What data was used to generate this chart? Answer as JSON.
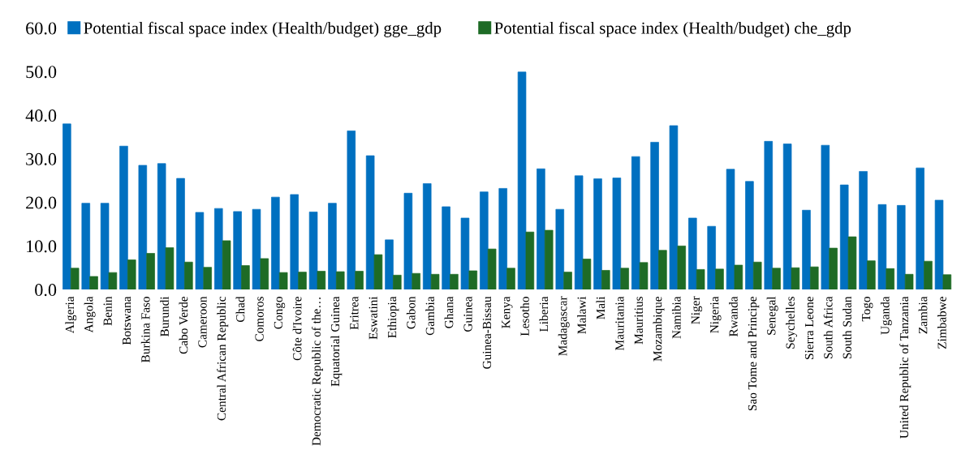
{
  "chart_data": {
    "type": "bar",
    "categories": [
      "Algeria",
      "Angola",
      "Benin",
      "Botswana",
      "Burkina Faso",
      "Burundi",
      "Cabo Verde",
      "Cameroon",
      "Central African Republic",
      "Chad",
      "Comoros",
      "Congo",
      "Côte d'Ivoire",
      "Democratic Republic of the…",
      "Equatorial Guinea",
      "Eritrea",
      "Eswatini",
      "Ethiopia",
      "Gabon",
      "Gambia",
      "Ghana",
      "Guinea",
      "Guinea-Bissau",
      "Kenya",
      "Lesotho",
      "Liberia",
      "Madagascar",
      "Malawi",
      "Mali",
      "Mauritania",
      "Mauritius",
      "Mozambique",
      "Namibia",
      "Niger",
      "Nigeria",
      "Rwanda",
      "Sao Tome and Principe",
      "Senegal",
      "Seychelles",
      "Sierra Leone",
      "South Africa",
      "South Sudan",
      "Togo",
      "Uganda",
      "United Republic of Tanzania",
      "Zambia",
      "Zimbabwe"
    ],
    "series": [
      {
        "name": "Potential fiscal space index (Health/budget) gge_gdp",
        "color": "#0070c0",
        "values": [
          38.0,
          19.8,
          19.8,
          32.9,
          28.5,
          28.9,
          25.5,
          17.7,
          18.6,
          17.9,
          18.4,
          21.2,
          21.8,
          17.8,
          19.8,
          36.4,
          30.7,
          11.4,
          22.1,
          24.3,
          19.0,
          16.4,
          22.4,
          23.2,
          49.9,
          27.7,
          18.4,
          26.1,
          25.4,
          25.6,
          30.5,
          33.8,
          37.6,
          16.4,
          14.5,
          27.6,
          24.8,
          34.0,
          33.4,
          18.2,
          33.1,
          24.0,
          27.1,
          19.5,
          19.3,
          27.9,
          20.5
        ]
      },
      {
        "name": "Potential fiscal space index (Health/budget) che_gdp",
        "color": "#1e6b26",
        "values": [
          4.9,
          3.0,
          3.9,
          6.8,
          8.3,
          9.6,
          6.3,
          5.1,
          11.2,
          5.5,
          7.1,
          3.9,
          4.0,
          4.2,
          4.1,
          4.2,
          8.0,
          3.3,
          3.7,
          3.5,
          3.5,
          4.3,
          9.3,
          4.9,
          13.2,
          13.6,
          4.0,
          7.0,
          4.4,
          4.9,
          6.2,
          9.0,
          10.0,
          4.6,
          4.7,
          5.6,
          6.3,
          4.9,
          5.0,
          5.2,
          9.5,
          12.1,
          6.6,
          4.8,
          3.5,
          6.5,
          3.4
        ]
      }
    ],
    "ylim": [
      0,
      60
    ],
    "yticks": [
      {
        "value": 0,
        "label": "0.0"
      },
      {
        "value": 10,
        "label": "10.0"
      },
      {
        "value": 20,
        "label": "20.0"
      },
      {
        "value": 30,
        "label": "30.0"
      },
      {
        "value": 40,
        "label": "40.0"
      },
      {
        "value": 50,
        "label": "50.0"
      },
      {
        "value": 60,
        "label": "60.0"
      }
    ],
    "legend": "top left",
    "grid": false
  }
}
